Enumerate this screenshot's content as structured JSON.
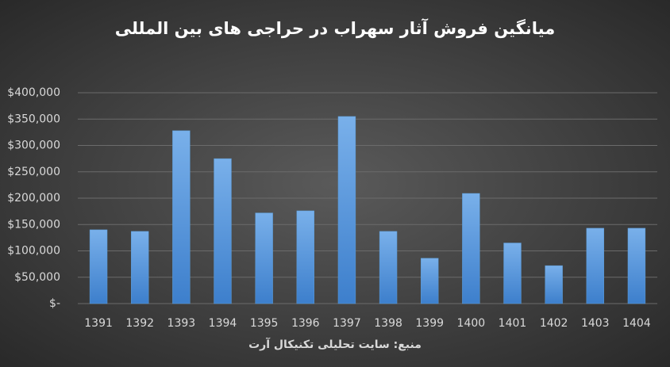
{
  "chart_data": {
    "type": "bar",
    "title": "میانگین فروش آثار سهراب در حراجی های بین المللی",
    "source": "منبع: سایت تحلیلی تکنیکال آرت",
    "categories": [
      "1391",
      "1392",
      "1393",
      "1394",
      "1395",
      "1396",
      "1397",
      "1398",
      "1399",
      "1400",
      "1401",
      "1402",
      "1403",
      "1404"
    ],
    "values": [
      140000,
      137000,
      328000,
      275000,
      172000,
      176000,
      355000,
      137000,
      86000,
      209000,
      115000,
      72000,
      143000,
      143000
    ],
    "color": "#5b9bd5",
    "ylim": [
      0,
      400000
    ],
    "yticks": [
      {
        "value": 0,
        "label": "$-"
      },
      {
        "value": 50000,
        "label": "$50,000"
      },
      {
        "value": 100000,
        "label": "$100,000"
      },
      {
        "value": 150000,
        "label": "$150,000"
      },
      {
        "value": 200000,
        "label": "$200,000"
      },
      {
        "value": 250000,
        "label": "$250,000"
      },
      {
        "value": 300000,
        "label": "$300,000"
      },
      {
        "value": 350000,
        "label": "$350,000"
      },
      {
        "value": 400000,
        "label": "$400,000"
      }
    ],
    "grid": true
  }
}
